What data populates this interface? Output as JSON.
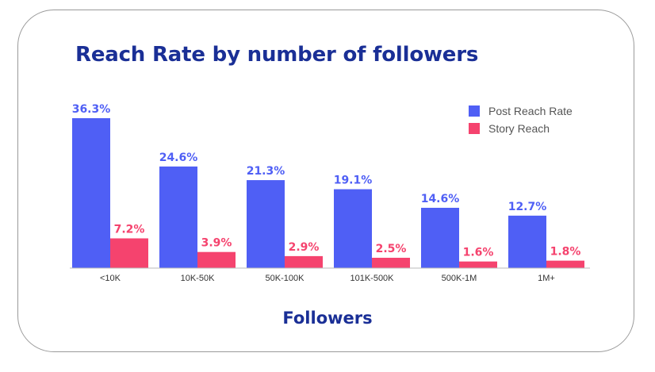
{
  "chart_data": {
    "type": "bar",
    "title": "Reach Rate by number of followers",
    "xlabel": "Followers",
    "ylabel": "",
    "ylim": [
      0,
      40
    ],
    "categories": [
      "<10K",
      "10K-50K",
      "50K-100K",
      "101K-500K",
      "500K-1M",
      "1M+"
    ],
    "series": [
      {
        "name": "Post Reach Rate",
        "color": "#4f5ff5",
        "values": [
          36.3,
          24.6,
          21.3,
          19.1,
          14.6,
          12.7
        ],
        "labels": [
          "36.3%",
          "24.6%",
          "21.3%",
          "19.1%",
          "14.6%",
          "12.7%"
        ]
      },
      {
        "name": "Story Reach",
        "color": "#f5436e",
        "values": [
          7.2,
          3.9,
          2.9,
          2.5,
          1.6,
          1.8
        ],
        "labels": [
          "7.2%",
          "3.9%",
          "2.9%",
          "2.5%",
          "1.6%",
          "1.8%"
        ]
      }
    ],
    "legend_position": "top-right",
    "grid": false
  }
}
